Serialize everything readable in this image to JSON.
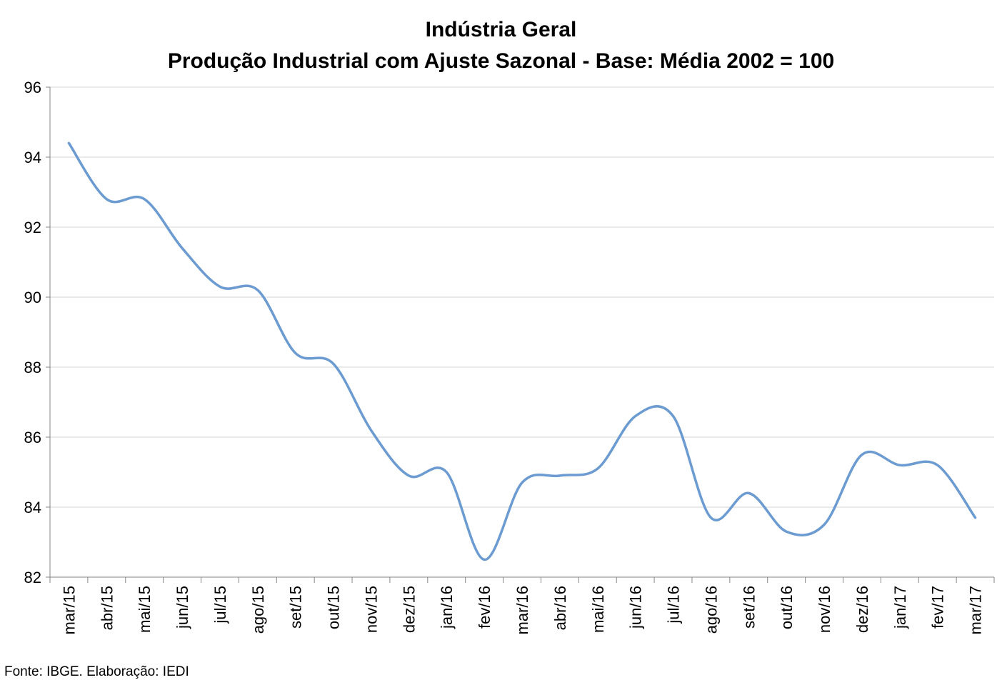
{
  "source_note": "Fonte: IBGE. Elaboração: IEDI",
  "chart_data": {
    "type": "line",
    "title": "Indústria Geral",
    "subtitle": "Produção Industrial com Ajuste Sazonal - Base: Média 2002 = 100",
    "xlabel": "",
    "ylabel": "",
    "ylim": [
      82,
      96
    ],
    "yticks": [
      82,
      84,
      86,
      88,
      90,
      92,
      94,
      96
    ],
    "grid": true,
    "legend": "none",
    "line_color": "#6b9bd1",
    "categories": [
      "mar/15",
      "abr/15",
      "mai/15",
      "jun/15",
      "jul/15",
      "ago/15",
      "set/15",
      "out/15",
      "nov/15",
      "dez/15",
      "jan/16",
      "fev/16",
      "mar/16",
      "abr/16",
      "mai/16",
      "jun/16",
      "jul/16",
      "ago/16",
      "set/16",
      "out/16",
      "nov/16",
      "dez/16",
      "jan/17",
      "fev/17",
      "mar/17"
    ],
    "values": [
      94.4,
      92.8,
      92.8,
      91.4,
      90.3,
      90.2,
      88.4,
      88.1,
      86.2,
      84.9,
      85.0,
      82.5,
      84.7,
      84.9,
      85.1,
      86.6,
      86.6,
      83.7,
      84.4,
      83.3,
      83.5,
      85.5,
      85.2,
      85.2,
      83.7
    ]
  }
}
